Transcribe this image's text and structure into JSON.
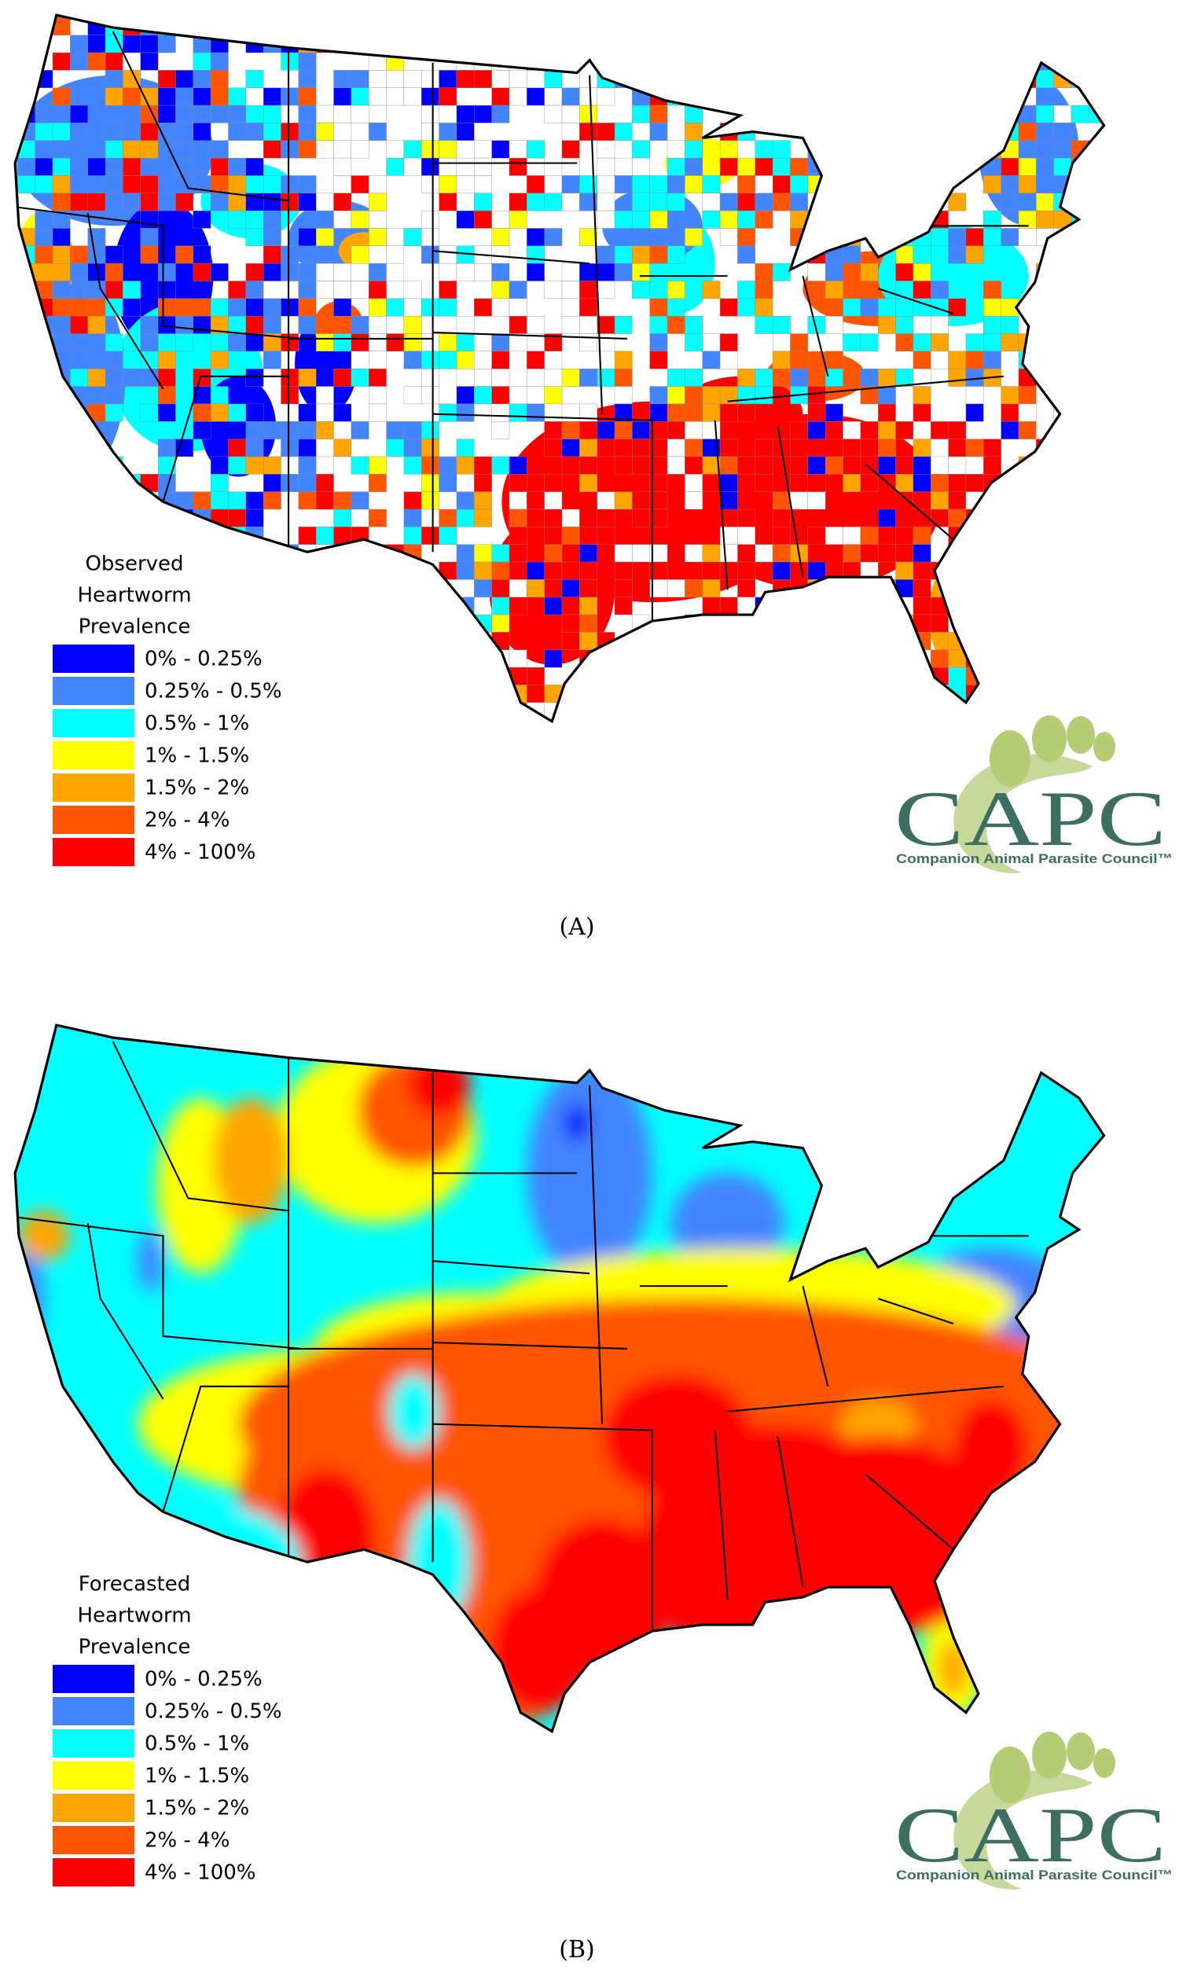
{
  "maps": [
    {
      "legend": {
        "title": [
          "Observed",
          "Heartworm",
          "Prevalence"
        ],
        "items": [
          {
            "label": "0% - 0.25%",
            "color": "#0000ff"
          },
          {
            "label": "0.25% - 0.5%",
            "color": "#4384ff"
          },
          {
            "label": "0.5% - 1%",
            "color": "#00ffff"
          },
          {
            "label": "1% - 1.5%",
            "color": "#ffff00"
          },
          {
            "label": "1.5% - 2%",
            "color": "#ffa500"
          },
          {
            "label": "2% - 4%",
            "color": "#ff5500"
          },
          {
            "label": "4% - 100%",
            "color": "#ff0000"
          }
        ]
      },
      "caption": "(A)"
    },
    {
      "legend": {
        "title": [
          "Forecasted",
          "Heartworm",
          "Prevalence"
        ],
        "items": [
          {
            "label": "0% - 0.25%",
            "color": "#0000ff"
          },
          {
            "label": "0.25% - 0.5%",
            "color": "#4384ff"
          },
          {
            "label": "0.5% - 1%",
            "color": "#00ffff"
          },
          {
            "label": "1% - 1.5%",
            "color": "#ffff00"
          },
          {
            "label": "1.5% - 2%",
            "color": "#ffa500"
          },
          {
            "label": "2% - 4%",
            "color": "#ff5500"
          },
          {
            "label": "4% - 100%",
            "color": "#ff0000"
          }
        ]
      },
      "caption": "(B)"
    }
  ],
  "logo": {
    "name": "CAPC",
    "subtitle": "Companion Animal Parasite Council™"
  }
}
